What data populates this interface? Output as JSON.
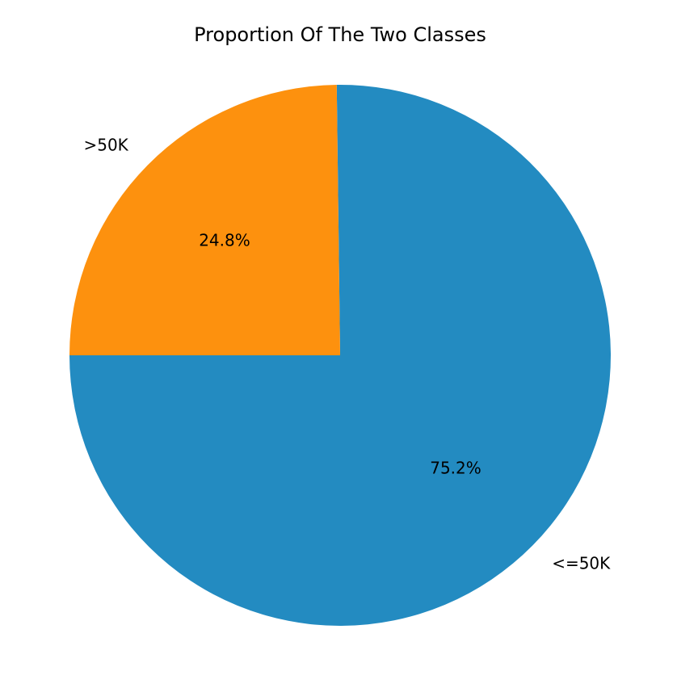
{
  "chart_data": {
    "type": "pie",
    "title": "Proportion Of The Two Classes",
    "categories": [
      "<=50K",
      ">50K"
    ],
    "values": [
      75.2,
      24.8
    ],
    "value_labels": [
      "75.2%",
      "24.8%"
    ],
    "colors": [
      "#238bc1",
      "#fd910e"
    ],
    "start_angle": 180,
    "counterclockwise": true
  }
}
